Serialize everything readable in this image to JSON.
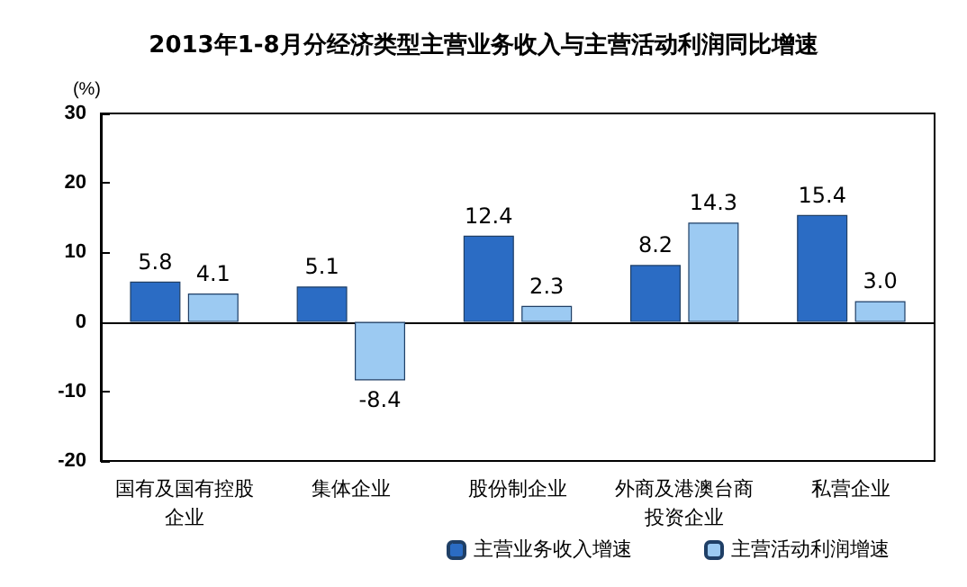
{
  "chart_data": {
    "type": "bar",
    "title": "2013年1-8月分经济类型主营业务收入与主营活动利润同比增速",
    "ylabel": "(%)",
    "categories": [
      "国有及国有控股企业",
      "集体企业",
      "股份制企业",
      "外商及港澳台商投资企业",
      "私营企业"
    ],
    "series": [
      {
        "name": "主营业务收入增速",
        "color": "#2b6cc4",
        "values": [
          5.8,
          5.1,
          12.4,
          8.2,
          15.4
        ]
      },
      {
        "name": "主营活动利润增速",
        "color": "#9ccaf2",
        "values": [
          4.1,
          -8.4,
          2.3,
          14.3,
          3
        ],
        "value_labels": [
          "4.1",
          "-8.4",
          "2.3",
          "14.3",
          "3.0"
        ]
      }
    ],
    "ylim": [
      -20,
      30
    ],
    "yticks": [
      -20,
      -10,
      0,
      10,
      20,
      30
    ],
    "legend": "bottom right",
    "data_labels": true
  }
}
